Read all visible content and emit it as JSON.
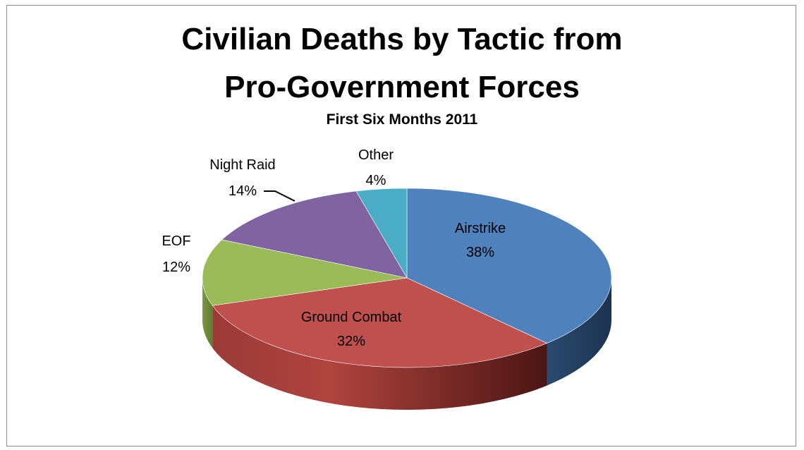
{
  "chart_data": {
    "type": "pie",
    "title_lines": [
      "Civilian Deaths by Tactic from",
      "Pro-Government Forces"
    ],
    "subtitle": "First Six Months 2011",
    "slices": [
      {
        "name": "Airstrike",
        "value": 38,
        "label": "38%",
        "color": "#4f81bd"
      },
      {
        "name": "Ground Combat",
        "value": 32,
        "label": "32%",
        "color": "#c0504d"
      },
      {
        "name": "EOF",
        "value": 12,
        "label": "12%",
        "color": "#9bbb59"
      },
      {
        "name": "Night Raid",
        "value": 14,
        "label": "14%",
        "color": "#8064a2"
      },
      {
        "name": "Other",
        "value": 4,
        "label": "4%",
        "color": "#4bacc6"
      }
    ],
    "style": "3d"
  }
}
